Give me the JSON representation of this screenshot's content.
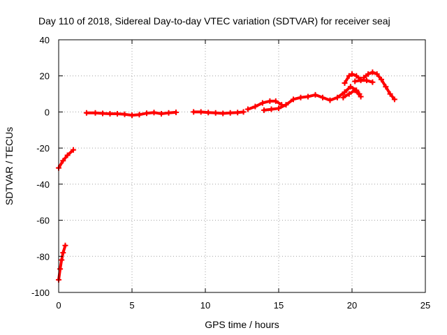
{
  "chart_data": {
    "type": "scatter",
    "title": "Day 110 of 2018, Sidereal Day-to-day VTEC variation (SDTVAR) for receiver seaj",
    "xlabel": "GPS time / hours",
    "ylabel": "SDTVAR / TECUs",
    "xlim": [
      0,
      25
    ],
    "ylim": [
      -100,
      40
    ],
    "xticks": [
      0,
      5,
      10,
      15,
      20,
      25
    ],
    "yticks": [
      -100,
      -80,
      -60,
      -40,
      -20,
      0,
      20,
      40
    ],
    "grid": true,
    "series_color": "#ff0000",
    "series": [
      {
        "name": "seg1",
        "points": [
          [
            0.0,
            -31
          ],
          [
            0.3,
            -27
          ],
          [
            0.6,
            -24
          ],
          [
            1.0,
            -21
          ]
        ]
      },
      {
        "name": "seg2",
        "points": [
          [
            0.0,
            -93
          ],
          [
            0.1,
            -87
          ],
          [
            0.2,
            -82
          ],
          [
            0.3,
            -78
          ],
          [
            0.45,
            -74
          ]
        ]
      },
      {
        "name": "seg3",
        "points": [
          [
            1.9,
            -0.5
          ],
          [
            2.5,
            -0.5
          ],
          [
            3.0,
            -0.8
          ],
          [
            3.5,
            -1
          ],
          [
            4.0,
            -1
          ],
          [
            4.5,
            -1.3
          ],
          [
            5.0,
            -1.8
          ],
          [
            5.5,
            -1.5
          ],
          [
            6.0,
            -0.7
          ],
          [
            6.5,
            -0.3
          ],
          [
            7.0,
            -1
          ],
          [
            7.5,
            -0.5
          ],
          [
            8.0,
            -0.2
          ]
        ]
      },
      {
        "name": "seg4",
        "points": [
          [
            9.2,
            0
          ],
          [
            9.7,
            0
          ],
          [
            10.2,
            -0.3
          ],
          [
            10.7,
            -0.5
          ],
          [
            11.2,
            -0.8
          ],
          [
            11.7,
            -0.5
          ],
          [
            12.2,
            -0.3
          ],
          [
            12.6,
            0
          ]
        ]
      },
      {
        "name": "seg5",
        "points": [
          [
            12.9,
            1.5
          ],
          [
            13.4,
            3
          ],
          [
            13.9,
            5
          ],
          [
            14.4,
            6
          ],
          [
            14.8,
            6
          ],
          [
            15.2,
            4
          ]
        ]
      },
      {
        "name": "seg6",
        "points": [
          [
            14.0,
            1
          ],
          [
            14.5,
            1.5
          ],
          [
            15.0,
            2
          ],
          [
            15.5,
            4
          ],
          [
            16.0,
            7
          ],
          [
            16.5,
            8
          ],
          [
            17.0,
            8.5
          ],
          [
            17.5,
            9.5
          ],
          [
            18.0,
            8
          ],
          [
            18.5,
            6.5
          ],
          [
            19.0,
            8
          ],
          [
            19.5,
            11
          ],
          [
            19.9,
            14
          ],
          [
            20.3,
            12
          ],
          [
            20.5,
            10
          ]
        ]
      },
      {
        "name": "seg7",
        "points": [
          [
            19.5,
            16
          ],
          [
            19.8,
            20
          ],
          [
            20.0,
            21
          ],
          [
            20.3,
            20
          ],
          [
            20.6,
            18
          ]
        ]
      },
      {
        "name": "seg8",
        "points": [
          [
            20.2,
            17
          ],
          [
            20.6,
            17.5
          ],
          [
            21.0,
            17.5
          ],
          [
            21.4,
            16.5
          ]
        ]
      },
      {
        "name": "seg9",
        "points": [
          [
            20.8,
            19
          ],
          [
            21.1,
            21
          ],
          [
            21.4,
            22
          ],
          [
            21.7,
            21
          ],
          [
            22.0,
            18
          ],
          [
            22.3,
            14
          ],
          [
            22.6,
            10
          ],
          [
            22.9,
            7
          ]
        ]
      },
      {
        "name": "seg10",
        "points": [
          [
            19.4,
            8
          ],
          [
            19.8,
            10
          ],
          [
            20.2,
            12
          ],
          [
            20.6,
            8.5
          ]
        ]
      }
    ]
  }
}
